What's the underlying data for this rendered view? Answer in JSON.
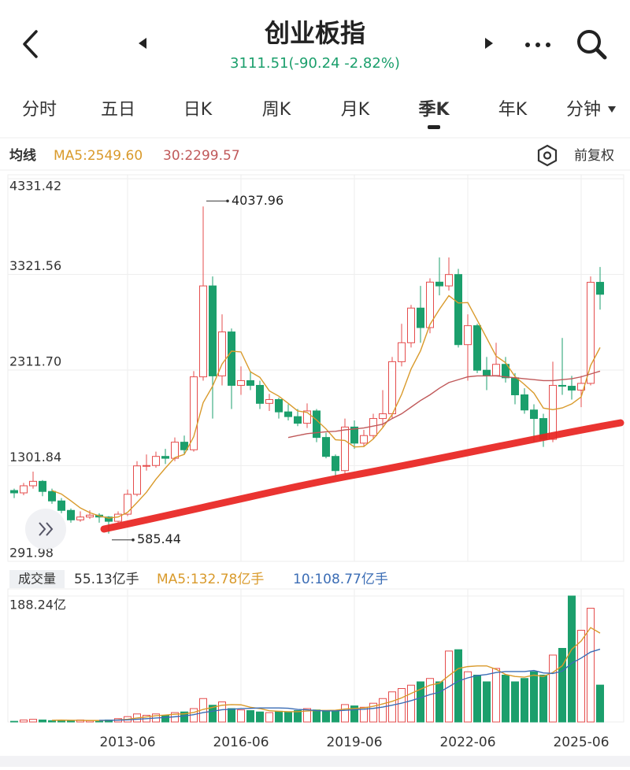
{
  "header": {
    "title": "创业板指",
    "quote": "3111.51(-90.24 -2.82%)"
  },
  "tabs": {
    "items": [
      "分时",
      "五日",
      "日K",
      "周K",
      "月K",
      "季K",
      "年K",
      "分钟"
    ],
    "active": 5
  },
  "legend": {
    "label": "均线",
    "adjust": "前复权"
  },
  "chart_data": {
    "type": "candlestick",
    "categories": [
      null,
      null,
      null,
      null,
      null,
      null,
      null,
      null,
      null,
      null,
      null,
      null,
      "2013-06",
      null,
      null,
      null,
      null,
      null,
      null,
      null,
      null,
      null,
      null,
      null,
      "2016-06",
      null,
      null,
      null,
      null,
      null,
      null,
      null,
      null,
      null,
      null,
      null,
      "2019-06",
      null,
      null,
      null,
      null,
      null,
      null,
      null,
      null,
      null,
      null,
      null,
      "2022-06",
      null,
      null,
      null,
      null,
      null,
      null,
      null,
      null,
      null,
      null,
      null,
      "2025-06",
      null,
      null
    ],
    "ylim": [
      291.98,
      4331.42
    ],
    "yticks": [
      291.98,
      1301.84,
      {
        "value": 2311.7,
        "label": "2311.70"
      },
      3321.56,
      4331.42
    ],
    "up_color": "#e54d4d",
    "down_color": "#1b9f6c",
    "candles": [
      [
        1040,
        1060,
        960,
        1015
      ],
      [
        1015,
        1120,
        990,
        1090
      ],
      [
        1090,
        1239,
        1060,
        1137
      ],
      [
        1137,
        1150,
        980,
        1030
      ],
      [
        1030,
        1060,
        900,
        930
      ],
      [
        930,
        960,
        800,
        830
      ],
      [
        830,
        850,
        700,
        730
      ],
      [
        730,
        820,
        710,
        760
      ],
      [
        760,
        830,
        740,
        780
      ],
      [
        780,
        800,
        700,
        760
      ],
      [
        760,
        770,
        585.44,
        715
      ],
      [
        715,
        820,
        700,
        790
      ],
      [
        790,
        1050,
        770,
        1000
      ],
      [
        1000,
        1350,
        980,
        1300
      ],
      [
        1300,
        1420,
        1250,
        1304
      ],
      [
        1304,
        1450,
        1280,
        1400
      ],
      [
        1400,
        1480,
        1320,
        1380
      ],
      [
        1380,
        1600,
        1350,
        1550
      ],
      [
        1550,
        1620,
        1420,
        1470
      ],
      [
        1470,
        2300,
        1450,
        2240
      ],
      [
        2240,
        4037.96,
        2200,
        3200
      ],
      [
        3200,
        3300,
        1800,
        2250
      ],
      [
        2250,
        2900,
        2150,
        2714
      ],
      [
        2714,
        2750,
        1900,
        2150
      ],
      [
        2150,
        2350,
        2050,
        2200
      ],
      [
        2200,
        2300,
        2100,
        2150
      ],
      [
        2150,
        2200,
        1900,
        1960
      ],
      [
        1960,
        2060,
        1880,
        2000
      ],
      [
        2000,
        2020,
        1800,
        1870
      ],
      [
        1870,
        1950,
        1780,
        1820
      ],
      [
        1820,
        1900,
        1720,
        1750
      ],
      [
        1750,
        1960,
        1700,
        1880
      ],
      [
        1880,
        1900,
        1550,
        1600
      ],
      [
        1600,
        1650,
        1380,
        1400
      ],
      [
        1400,
        1420,
        1180,
        1250
      ],
      [
        1250,
        1800,
        1220,
        1710
      ],
      [
        1710,
        1780,
        1480,
        1540
      ],
      [
        1540,
        1680,
        1500,
        1620
      ],
      [
        1620,
        1850,
        1580,
        1800
      ],
      [
        1800,
        2100,
        1700,
        1850
      ],
      [
        1850,
        2450,
        1800,
        2400
      ],
      [
        2400,
        2800,
        2350,
        2600
      ],
      [
        2600,
        3000,
        2550,
        2966
      ],
      [
        2966,
        3200,
        2600,
        2760
      ],
      [
        2760,
        3280,
        2700,
        3240
      ],
      [
        3240,
        3500,
        3100,
        3200
      ],
      [
        3200,
        3500,
        3150,
        3320
      ],
      [
        3320,
        3380,
        2550,
        2580
      ],
      [
        2580,
        2900,
        2200,
        2780
      ],
      [
        2780,
        2800,
        2280,
        2310
      ],
      [
        2310,
        2450,
        2100,
        2254
      ],
      [
        2254,
        2600,
        2250,
        2372
      ],
      [
        2372,
        2450,
        2180,
        2230
      ],
      [
        2230,
        2280,
        1950,
        2050
      ],
      [
        2050,
        2120,
        1850,
        1890
      ],
      [
        1890,
        1950,
        1550,
        1800
      ],
      [
        1800,
        1850,
        1500,
        1580
      ],
      [
        1580,
        2400,
        1550,
        2150
      ],
      [
        2150,
        2650,
        2050,
        2141
      ],
      [
        2141,
        2250,
        2000,
        2100
      ],
      [
        2100,
        2250,
        1920,
        2171
      ],
      [
        2171,
        3300,
        2150,
        3238
      ],
      [
        3238,
        3400,
        2950,
        3111.51
      ]
    ],
    "series": [
      {
        "label": "MA5:2549.60",
        "color": "#d99a2b",
        "values": [
          null,
          null,
          null,
          null,
          1040,
          1003,
          931,
          856,
          806,
          772,
          749,
          761,
          809,
          913,
          1022,
          1159,
          1277,
          1387,
          1421,
          1608,
          1968,
          2142,
          2375,
          2511,
          2503,
          2293,
          2235,
          2092,
          2036,
          1960,
          1880,
          1864,
          1784,
          1690,
          1576,
          1568,
          1500,
          1504,
          1584,
          1704,
          1842,
          2054,
          2323,
          2515,
          2793,
          2953,
          3097,
          3020,
          3024,
          2838,
          2649,
          2459,
          2389,
          2243,
          2159,
          2068,
          1910,
          1894,
          1912,
          1954,
          2028,
          2360,
          2549.6
        ]
      },
      {
        "label": "30:2299.57",
        "color": "#c0595a",
        "values": [
          null,
          null,
          null,
          null,
          null,
          null,
          null,
          null,
          null,
          null,
          null,
          null,
          null,
          null,
          null,
          null,
          null,
          null,
          null,
          null,
          null,
          null,
          null,
          null,
          null,
          null,
          null,
          null,
          null,
          1600,
          1620,
          1640,
          1650,
          1660,
          1665,
          1680,
          1690,
          1700,
          1720,
          1740,
          1800,
          1850,
          1920,
          1990,
          2050,
          2120,
          2180,
          2210,
          2240,
          2250,
          2250,
          2250,
          2240,
          2230,
          2220,
          2210,
          2200,
          2200,
          2210,
          2220,
          2240,
          2270,
          2299.57
        ]
      }
    ],
    "volume": {
      "label": "成交量",
      "current": "55.13亿手",
      "ylim": [
        0,
        188.24
      ],
      "yticks": [
        {
          "value": 188.24,
          "label": "188.24亿"
        }
      ],
      "values": [
        1,
        3,
        4,
        3,
        2,
        2,
        2,
        3,
        2,
        2,
        3,
        5,
        8,
        12,
        10,
        12,
        10,
        14,
        15,
        20,
        35,
        25,
        30,
        20,
        18,
        17,
        15,
        14,
        16,
        15,
        17,
        20,
        18,
        16,
        17,
        26,
        24,
        22,
        28,
        35,
        45,
        50,
        55,
        60,
        65,
        60,
        106,
        108,
        75,
        70,
        60,
        80,
        70,
        60,
        65,
        75,
        70,
        100,
        110,
        188.24,
        137,
        170,
        55.13
      ],
      "series": [
        {
          "label": "MA5:132.78亿手",
          "color": "#d99a2b",
          "values": [
            null,
            null,
            null,
            null,
            2.6,
            2.8,
            2.6,
            2.4,
            2.2,
            2.2,
            2.4,
            3,
            4,
            6,
            7.6,
            9.4,
            10.4,
            11.6,
            12.2,
            14.2,
            18.8,
            21.8,
            25,
            26,
            25.6,
            22,
            20,
            16.8,
            16,
            15.4,
            15.4,
            16.4,
            17.2,
            17.2,
            17.6,
            19.4,
            20.2,
            21,
            23.4,
            27,
            30.8,
            36,
            42.6,
            49,
            55,
            58,
            69.2,
            79.8,
            82.8,
            83.8,
            83.8,
            78.6,
            71,
            68,
            67,
            70,
            68,
            74,
            84,
            108.6,
            121,
            141,
            132.78
          ]
        },
        {
          "label": "10:108.77亿手",
          "color": "#3b6db5",
          "values": [
            null,
            null,
            null,
            null,
            null,
            null,
            null,
            null,
            null,
            2.4,
            2.6,
            2.8,
            3.2,
            4.1,
            4.9,
            5.9,
            6.7,
            7.8,
            9.1,
            10.9,
            14.1,
            16.1,
            18.3,
            19.1,
            19.9,
            20.4,
            20.9,
            20.9,
            21,
            20.5,
            18.7,
            18.2,
            17,
            16.6,
            16.5,
            17.4,
            18.3,
            19.1,
            20.3,
            22.3,
            25.1,
            28.1,
            31.8,
            36.2,
            41,
            44.4,
            52.6,
            61.2,
            65.9,
            69.4,
            70.9,
            73.9,
            75.4,
            75.4,
            75.4,
            76.9,
            73.3,
            72.5,
            76,
            87.8,
            95.5,
            104.5,
            108.77
          ]
        }
      ]
    }
  }
}
